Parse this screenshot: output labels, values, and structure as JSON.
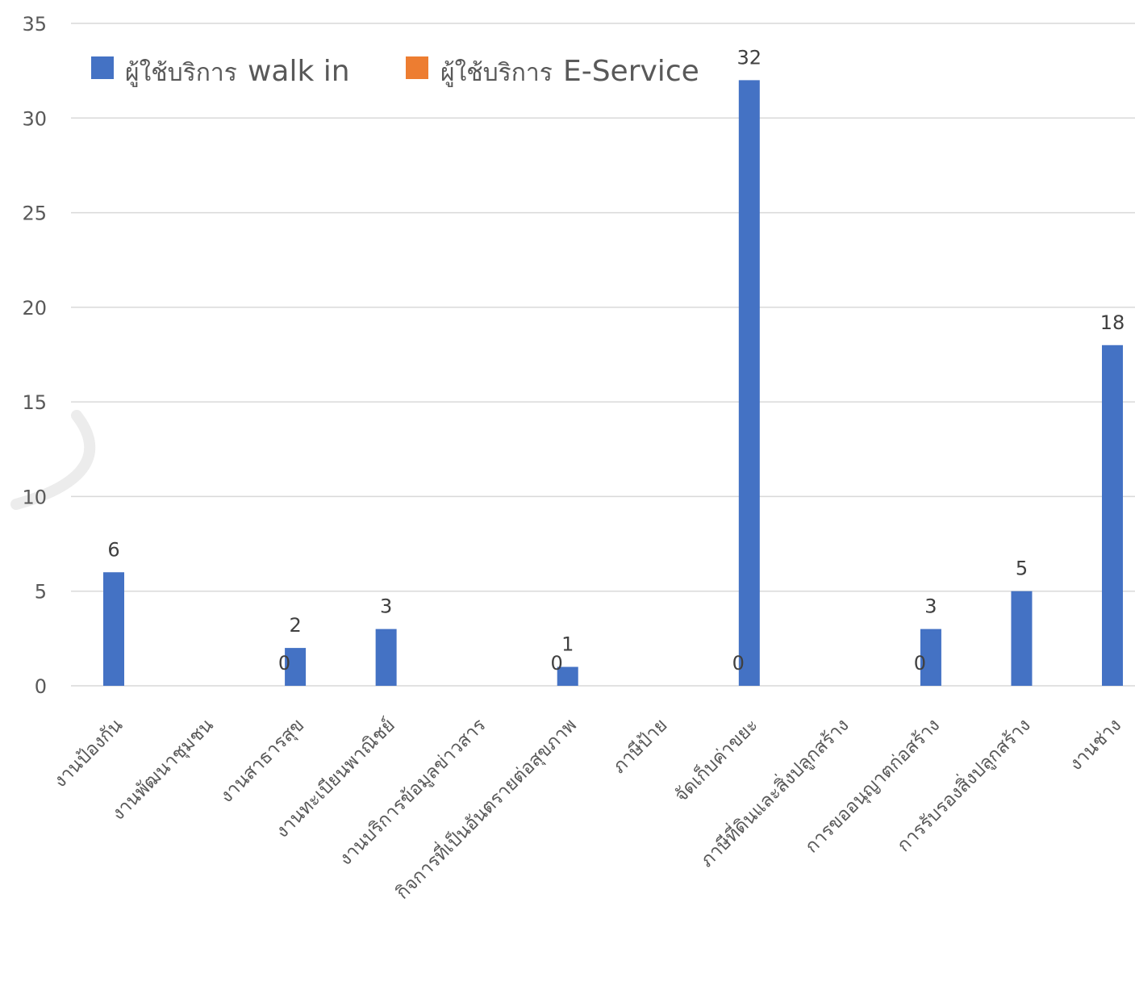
{
  "chart_data": {
    "type": "bar",
    "categories": [
      "งานป้องกัน",
      "งานพัฒนาชุมชน",
      "งานสาธารสุข",
      "งานทะเบียนพาณิชย์",
      "งานบริการข้อมูลข่าวสาร",
      "กิจการที่เป็นอันตรายต่อสุขภาพ",
      "ภาษีป้าย",
      "จัดเก็บค่าขยะ",
      "ภาษีที่ดินและสิ่งปลูกสร้าง",
      "การขออนุญาตก่อสร้าง",
      "การรับรองสิ่งปลูกสร้าง",
      "งานช่าง"
    ],
    "series": [
      {
        "name": "ผู้ใช้บริการ walk in",
        "color": "#4472C4",
        "values": [
          6,
          0,
          2,
          3,
          0,
          1,
          0,
          32,
          0,
          3,
          5,
          18
        ]
      },
      {
        "name": "ผู้ใช้บริการ E-Service",
        "color": "#ED7D31",
        "values": [
          0,
          0,
          0,
          0,
          0,
          0,
          0,
          0,
          0,
          0,
          0,
          0
        ]
      }
    ],
    "data_labels": [
      "6",
      "0",
      "2",
      "3",
      "0",
      "1",
      "0",
      "32",
      "0",
      "3",
      "5",
      "18"
    ],
    "ylim": [
      0,
      35
    ],
    "yticks": [
      "0",
      "5",
      "10",
      "15",
      "20",
      "25",
      "30",
      "35"
    ],
    "legend": {
      "placement": "top-left",
      "items": [
        {
          "prefix": "ผู้ใช้บริการ",
          "suffix": "walk in",
          "color": "#4472C4"
        },
        {
          "prefix": "ผู้ใช้บริการ",
          "suffix": "E-Service",
          "color": "#ED7D31"
        }
      ]
    },
    "grid": true,
    "title": "",
    "xlabel": "",
    "ylabel": ""
  }
}
